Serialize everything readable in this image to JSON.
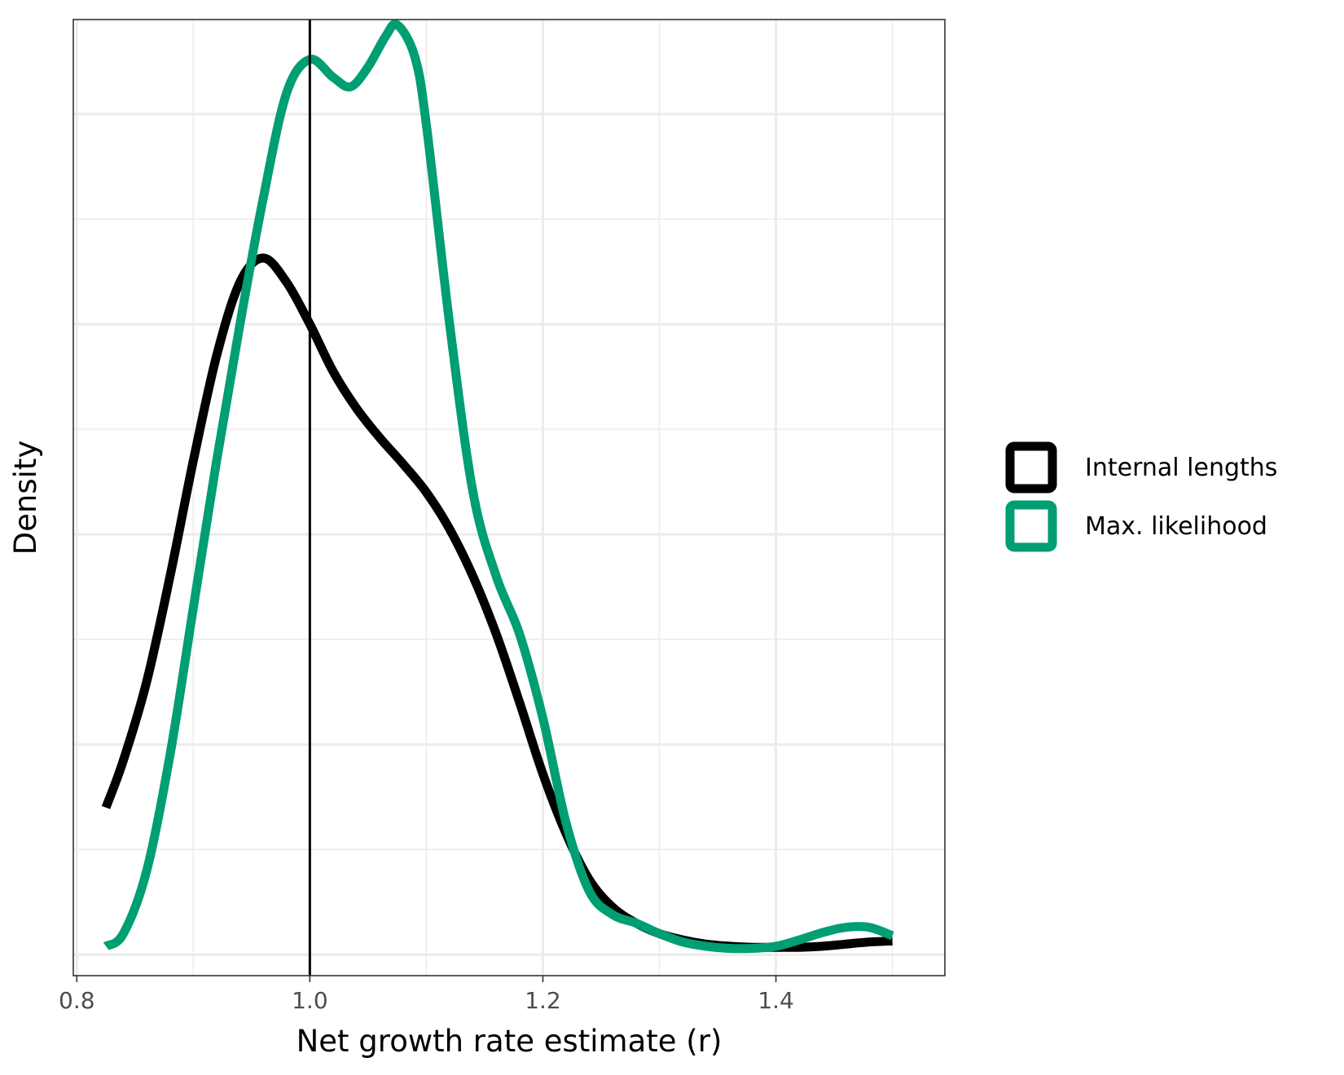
{
  "chart_data": {
    "type": "line",
    "title": "",
    "xlabel": "Net growth rate estimate (r)",
    "ylabel": "Density",
    "xlim": [
      0.797,
      1.545
    ],
    "ylim": [
      -0.2,
      8.9
    ],
    "x_ticks": [
      0.8,
      1.0,
      1.2,
      1.4
    ],
    "x_tick_labels": [
      "0.8",
      "1.0",
      "1.2",
      "1.4"
    ],
    "x_minor_ticks": [
      0.9,
      1.1,
      1.3,
      1.5
    ],
    "y_major_gridlines": [
      0,
      2,
      4,
      6,
      8
    ],
    "y_minor_gridlines": [
      1,
      3,
      5,
      7
    ],
    "y_tick_labels_shown": false,
    "grid": true,
    "vline": {
      "x": 1.0,
      "color": "#000000"
    },
    "legend": {
      "placement": "right",
      "style": "outlined-square"
    },
    "series": [
      {
        "name": "Internal lengths",
        "color": "#000000",
        "points": [
          [
            0.825,
            1.4
          ],
          [
            0.84,
            1.85
          ],
          [
            0.86,
            2.6
          ],
          [
            0.88,
            3.6
          ],
          [
            0.9,
            4.7
          ],
          [
            0.92,
            5.7
          ],
          [
            0.94,
            6.4
          ],
          [
            0.96,
            6.63
          ],
          [
            0.98,
            6.4
          ],
          [
            1.0,
            6.0
          ],
          [
            1.02,
            5.55
          ],
          [
            1.04,
            5.2
          ],
          [
            1.06,
            4.92
          ],
          [
            1.08,
            4.67
          ],
          [
            1.1,
            4.4
          ],
          [
            1.12,
            4.05
          ],
          [
            1.14,
            3.6
          ],
          [
            1.16,
            3.05
          ],
          [
            1.18,
            2.4
          ],
          [
            1.2,
            1.72
          ],
          [
            1.22,
            1.15
          ],
          [
            1.24,
            0.71
          ],
          [
            1.26,
            0.45
          ],
          [
            1.28,
            0.3
          ],
          [
            1.3,
            0.2
          ],
          [
            1.32,
            0.14
          ],
          [
            1.34,
            0.1
          ],
          [
            1.36,
            0.08
          ],
          [
            1.38,
            0.07
          ],
          [
            1.4,
            0.07
          ],
          [
            1.42,
            0.07
          ],
          [
            1.44,
            0.08
          ],
          [
            1.46,
            0.1
          ],
          [
            1.48,
            0.12
          ],
          [
            1.5,
            0.13
          ]
        ]
      },
      {
        "name": "Max. likelihood",
        "color": "#009E73",
        "points": [
          [
            0.825,
            0.08
          ],
          [
            0.84,
            0.2
          ],
          [
            0.86,
            0.8
          ],
          [
            0.88,
            1.9
          ],
          [
            0.9,
            3.3
          ],
          [
            0.92,
            4.7
          ],
          [
            0.94,
            6.0
          ],
          [
            0.96,
            7.2
          ],
          [
            0.98,
            8.2
          ],
          [
            1.0,
            8.52
          ],
          [
            1.02,
            8.35
          ],
          [
            1.035,
            8.26
          ],
          [
            1.05,
            8.45
          ],
          [
            1.065,
            8.74
          ],
          [
            1.075,
            8.85
          ],
          [
            1.09,
            8.55
          ],
          [
            1.1,
            7.9
          ],
          [
            1.12,
            6.0
          ],
          [
            1.14,
            4.4
          ],
          [
            1.16,
            3.6
          ],
          [
            1.18,
            3.05
          ],
          [
            1.2,
            2.25
          ],
          [
            1.22,
            1.25
          ],
          [
            1.24,
            0.6
          ],
          [
            1.26,
            0.38
          ],
          [
            1.28,
            0.3
          ],
          [
            1.3,
            0.2
          ],
          [
            1.32,
            0.12
          ],
          [
            1.34,
            0.08
          ],
          [
            1.36,
            0.06
          ],
          [
            1.38,
            0.06
          ],
          [
            1.4,
            0.08
          ],
          [
            1.42,
            0.14
          ],
          [
            1.44,
            0.21
          ],
          [
            1.46,
            0.26
          ],
          [
            1.48,
            0.26
          ],
          [
            1.5,
            0.18
          ]
        ]
      }
    ]
  }
}
